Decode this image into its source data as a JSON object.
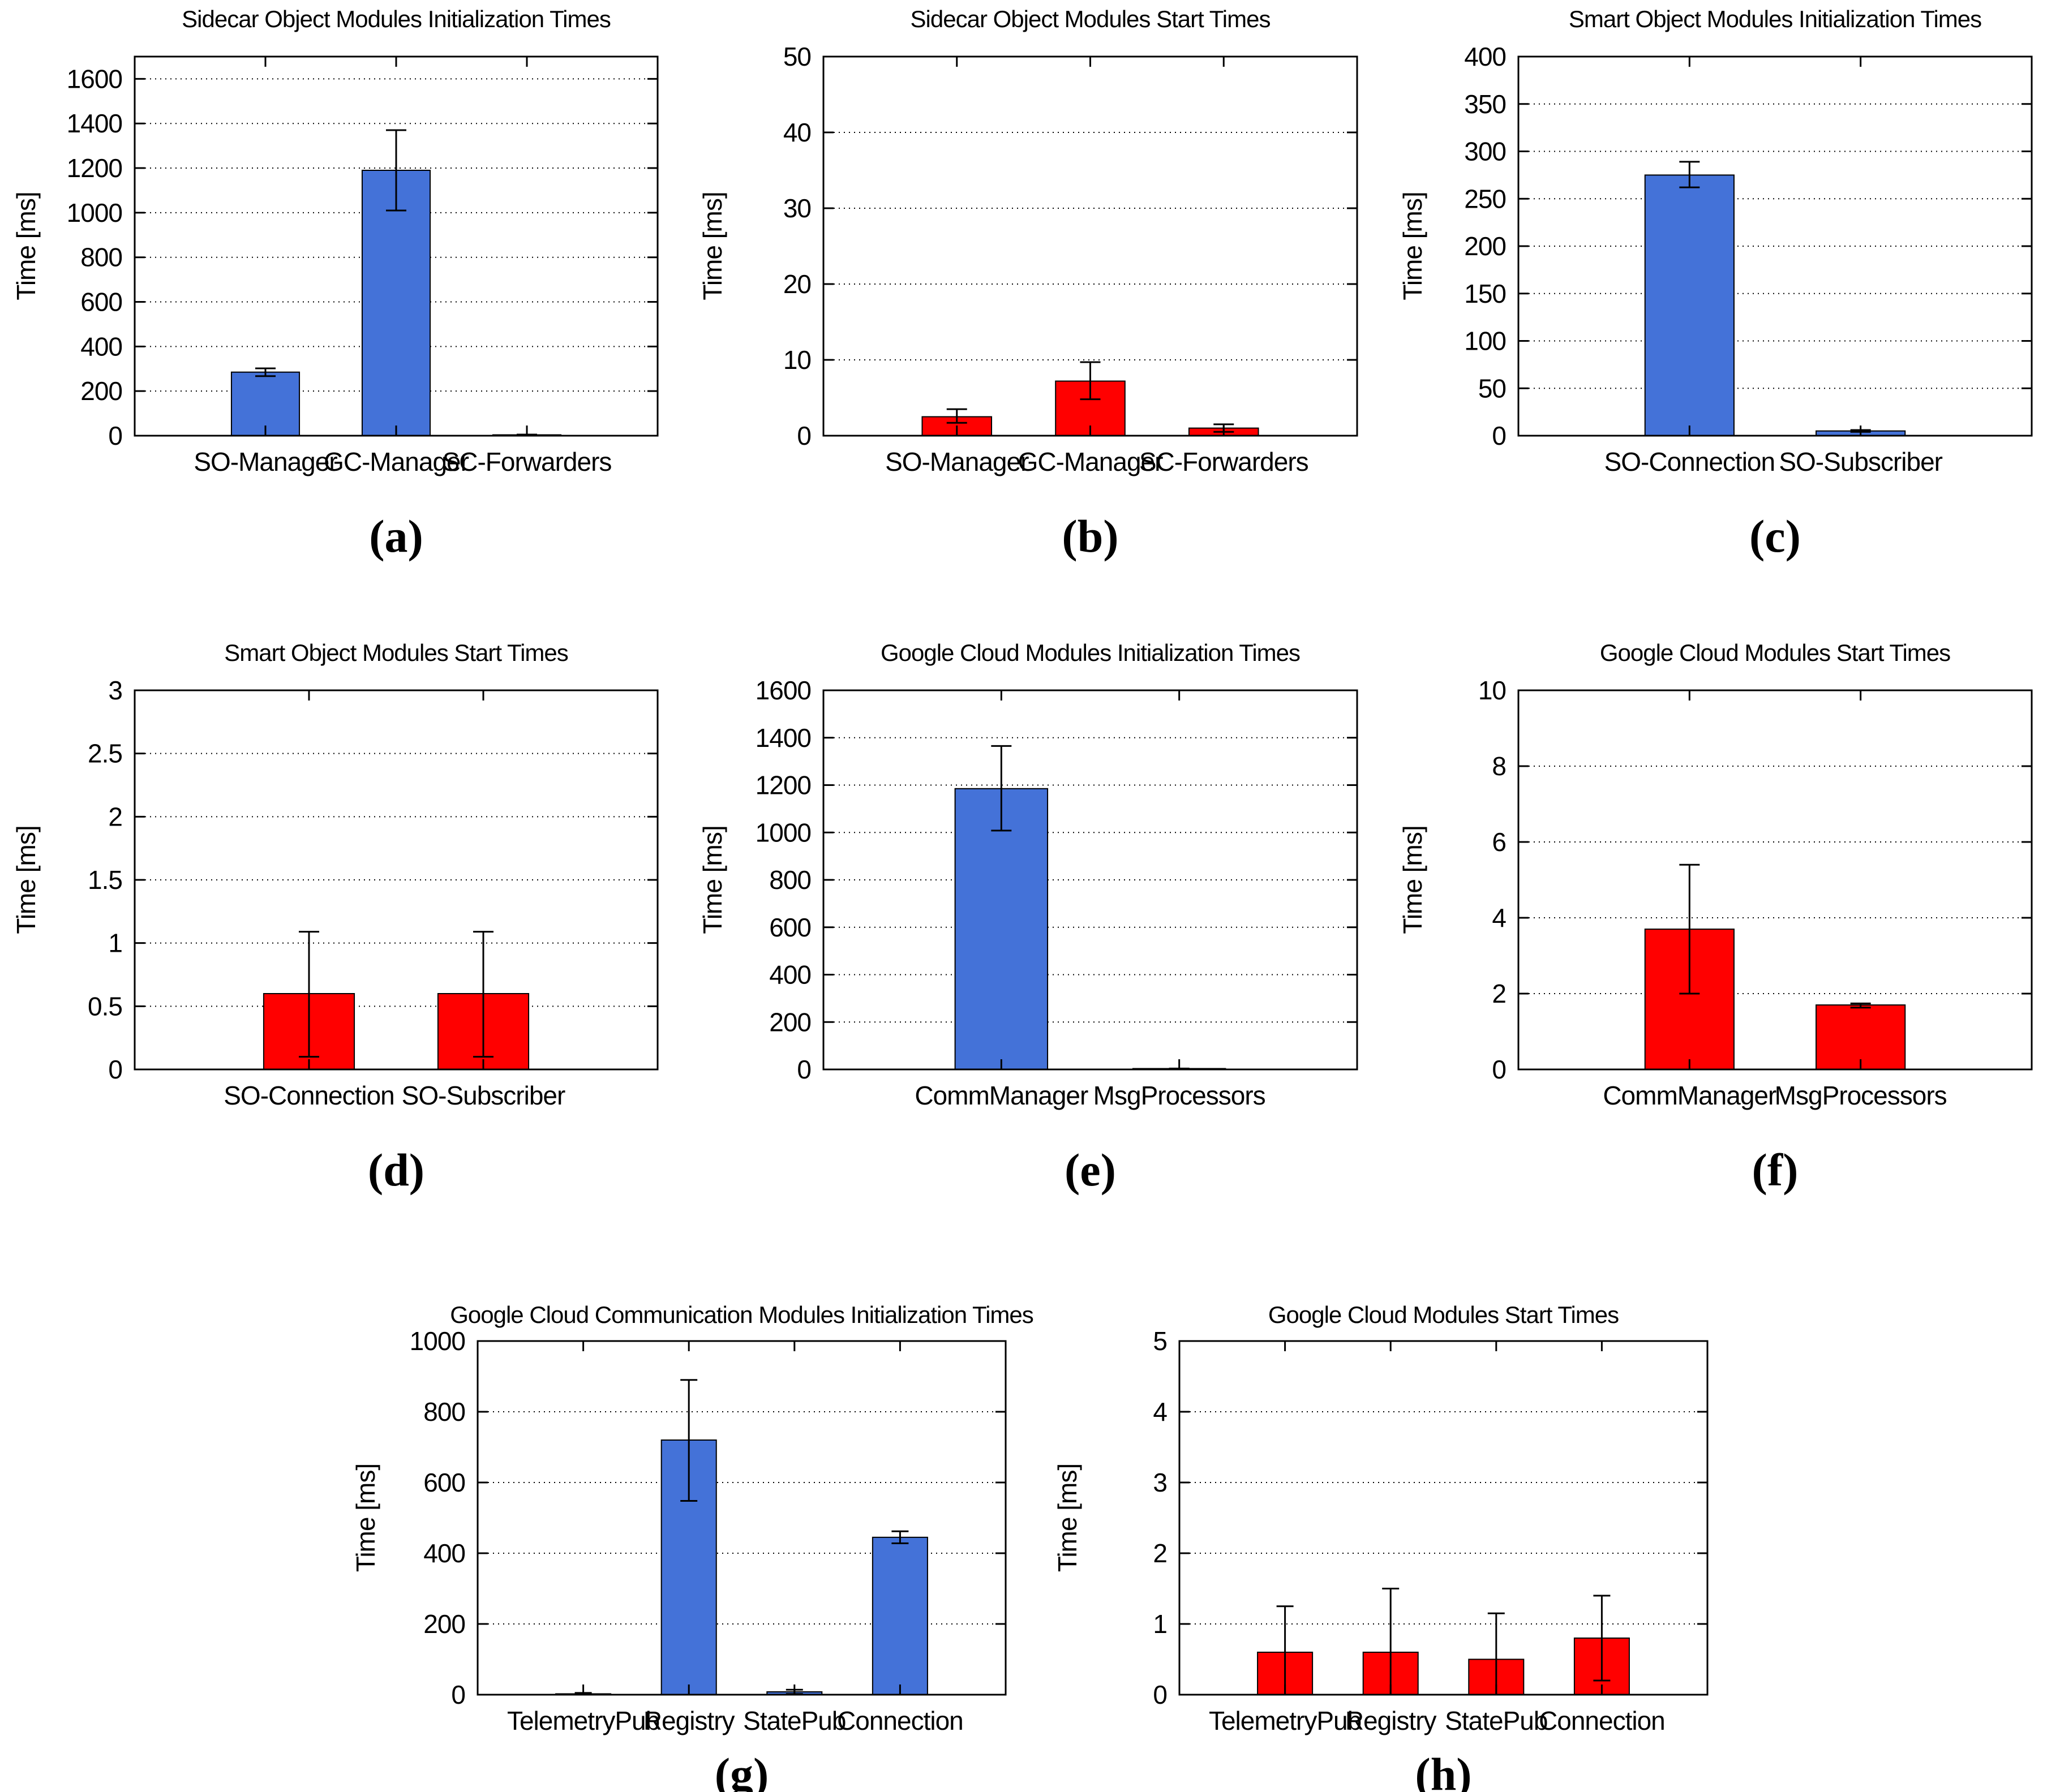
{
  "figure": {
    "background": "#ffffff",
    "ylabel_all": "Time [ms]"
  },
  "colors": {
    "init_bar_blue": "#4472D8",
    "start_bar_red": "#FF0000",
    "axis_black": "#000000"
  },
  "chart_data": [
    {
      "id": "a",
      "letter": "(a)",
      "type": "bar",
      "title": "Sidecar Object Modules Initialization Times",
      "ylabel": "Time [ms]",
      "categories": [
        "SO-Manager",
        "GC-Manager",
        "SC-Forwarders"
      ],
      "values": [
        285,
        1190,
        2
      ],
      "error_low": [
        267,
        1010,
        0
      ],
      "error_high": [
        302,
        1370,
        5
      ],
      "ylim": [
        0,
        1700
      ],
      "yticks": [
        0,
        200,
        400,
        600,
        800,
        1000,
        1200,
        1400,
        1600
      ],
      "grid": true,
      "bar_color": "#4472D8"
    },
    {
      "id": "b",
      "letter": "(b)",
      "type": "bar",
      "title": "Sidecar Object Modules Start Times",
      "ylabel": "Time [ms]",
      "categories": [
        "SO-Manager",
        "GC-Manager",
        "SC-Forwarders"
      ],
      "values": [
        2.5,
        7.2,
        1.0
      ],
      "error_low": [
        1.7,
        4.8,
        0.5
      ],
      "error_high": [
        3.5,
        9.7,
        1.5
      ],
      "ylim": [
        0,
        50
      ],
      "yticks": [
        0,
        10,
        20,
        30,
        40,
        50
      ],
      "grid": true,
      "bar_color": "#FF0000"
    },
    {
      "id": "c",
      "letter": "(c)",
      "type": "bar",
      "title": "Smart Object Modules Initialization Times",
      "ylabel": "Time [ms]",
      "categories": [
        "SO-Connection",
        "SO-Subscriber"
      ],
      "values": [
        275,
        5
      ],
      "error_low": [
        262,
        4
      ],
      "error_high": [
        289,
        6
      ],
      "ylim": [
        0,
        400
      ],
      "yticks": [
        0,
        50,
        100,
        150,
        200,
        250,
        300,
        350,
        400
      ],
      "grid": true,
      "bar_color": "#4472D8"
    },
    {
      "id": "d",
      "letter": "(d)",
      "type": "bar",
      "title": "Smart Object Modules Start Times",
      "ylabel": "Time [ms]",
      "categories": [
        "SO-Connection",
        "SO-Subscriber"
      ],
      "values": [
        0.6,
        0.6
      ],
      "error_low": [
        0.1,
        0.1
      ],
      "error_high": [
        1.09,
        1.09
      ],
      "ylim": [
        0,
        3
      ],
      "yticks": [
        0,
        0.5,
        1,
        1.5,
        2,
        2.5,
        3
      ],
      "grid": true,
      "bar_color": "#FF0000"
    },
    {
      "id": "e",
      "letter": "(e)",
      "type": "bar",
      "title": "Google Cloud Modules Initialization Times",
      "ylabel": "Time [ms]",
      "categories": [
        "CommManager",
        "MsgProcessors"
      ],
      "values": [
        1185,
        3
      ],
      "error_low": [
        1008,
        1
      ],
      "error_high": [
        1365,
        4
      ],
      "ylim": [
        0,
        1600
      ],
      "yticks": [
        0,
        200,
        400,
        600,
        800,
        1000,
        1200,
        1400,
        1600
      ],
      "grid": true,
      "bar_color": "#4472D8"
    },
    {
      "id": "f",
      "letter": "(f)",
      "type": "bar",
      "title": "Google Cloud Modules Start Times",
      "ylabel": "Time [ms]",
      "categories": [
        "CommManager",
        "MsgProcessors"
      ],
      "values": [
        3.7,
        1.7
      ],
      "error_low": [
        2.0,
        1.63
      ],
      "error_high": [
        5.4,
        1.74
      ],
      "ylim": [
        0,
        10
      ],
      "yticks": [
        0,
        2,
        4,
        6,
        8,
        10
      ],
      "grid": true,
      "bar_color": "#FF0000"
    },
    {
      "id": "g",
      "letter": "(g)",
      "type": "bar",
      "title": "Google Cloud Communication Modules Initialization Times",
      "ylabel": "Time [ms]",
      "categories": [
        "TelemetryPub",
        "Registry",
        "StatePub",
        "Connection"
      ],
      "values": [
        2,
        720,
        8,
        445
      ],
      "error_low": [
        0,
        548,
        2,
        428
      ],
      "error_high": [
        5,
        890,
        14,
        462
      ],
      "ylim": [
        0,
        1000
      ],
      "yticks": [
        0,
        200,
        400,
        600,
        800,
        1000
      ],
      "grid": true,
      "bar_color": "#4472D8"
    },
    {
      "id": "h",
      "letter": "(h)",
      "type": "bar",
      "title": "Google Cloud Modules Start Times",
      "ylabel": "Time [ms]",
      "categories": [
        "TelemetryPub",
        "Registry",
        "StatePub",
        "Connection"
      ],
      "values": [
        0.6,
        0.6,
        0.5,
        0.8
      ],
      "error_low": [
        0.0,
        0.0,
        0.0,
        0.2
      ],
      "error_high": [
        1.25,
        1.5,
        1.15,
        1.4
      ],
      "ylim": [
        0,
        5
      ],
      "yticks": [
        0,
        1,
        2,
        3,
        4,
        5
      ],
      "grid": true,
      "bar_color": "#FF0000"
    }
  ]
}
